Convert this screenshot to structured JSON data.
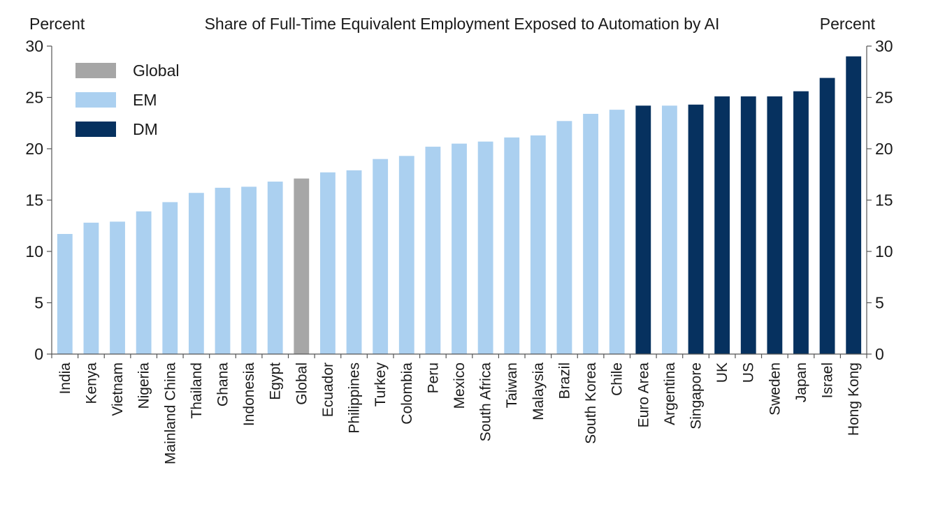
{
  "chart_data": {
    "type": "bar",
    "title": "Share of Full-Time Equivalent Employment Exposed to Automation by AI",
    "left_axis_label": "Percent",
    "right_axis_label": "Percent",
    "ylim": [
      0,
      30
    ],
    "yticks": [
      "0",
      "5",
      "10",
      "15",
      "20",
      "25",
      "30"
    ],
    "grid": false,
    "legend_position": "top-left",
    "legend": [
      {
        "group": "Global",
        "label": "Global",
        "color": "#a6a6a6"
      },
      {
        "group": "EM",
        "label": "EM",
        "color": "#abd0f0"
      },
      {
        "group": "DM",
        "label": "DM",
        "color": "#06315f"
      }
    ],
    "categories": [
      "India",
      "Kenya",
      "Vietnam",
      "Nigeria",
      "Mainland China",
      "Thailand",
      "Ghana",
      "Indonesia",
      "Egypt",
      "Global",
      "Ecuador",
      "Philippines",
      "Turkey",
      "Colombia",
      "Peru",
      "Mexico",
      "South Africa",
      "Taiwan",
      "Malaysia",
      "Brazil",
      "South Korea",
      "Chile",
      "Euro Area",
      "Argentina",
      "Singapore",
      "UK",
      "US",
      "Sweden",
      "Japan",
      "Israel",
      "Hong Kong"
    ],
    "values": [
      11.7,
      12.8,
      12.9,
      13.9,
      14.8,
      15.7,
      16.2,
      16.3,
      16.8,
      17.1,
      17.7,
      17.9,
      19.0,
      19.3,
      20.2,
      20.5,
      20.7,
      21.1,
      21.3,
      22.7,
      23.4,
      23.8,
      24.2,
      24.2,
      24.3,
      25.1,
      25.1,
      25.1,
      25.6,
      26.9,
      29.0
    ],
    "groups": [
      "EM",
      "EM",
      "EM",
      "EM",
      "EM",
      "EM",
      "EM",
      "EM",
      "EM",
      "Global",
      "EM",
      "EM",
      "EM",
      "EM",
      "EM",
      "EM",
      "EM",
      "EM",
      "EM",
      "EM",
      "EM",
      "EM",
      "DM",
      "EM",
      "DM",
      "DM",
      "DM",
      "DM",
      "DM",
      "DM",
      "DM"
    ]
  }
}
